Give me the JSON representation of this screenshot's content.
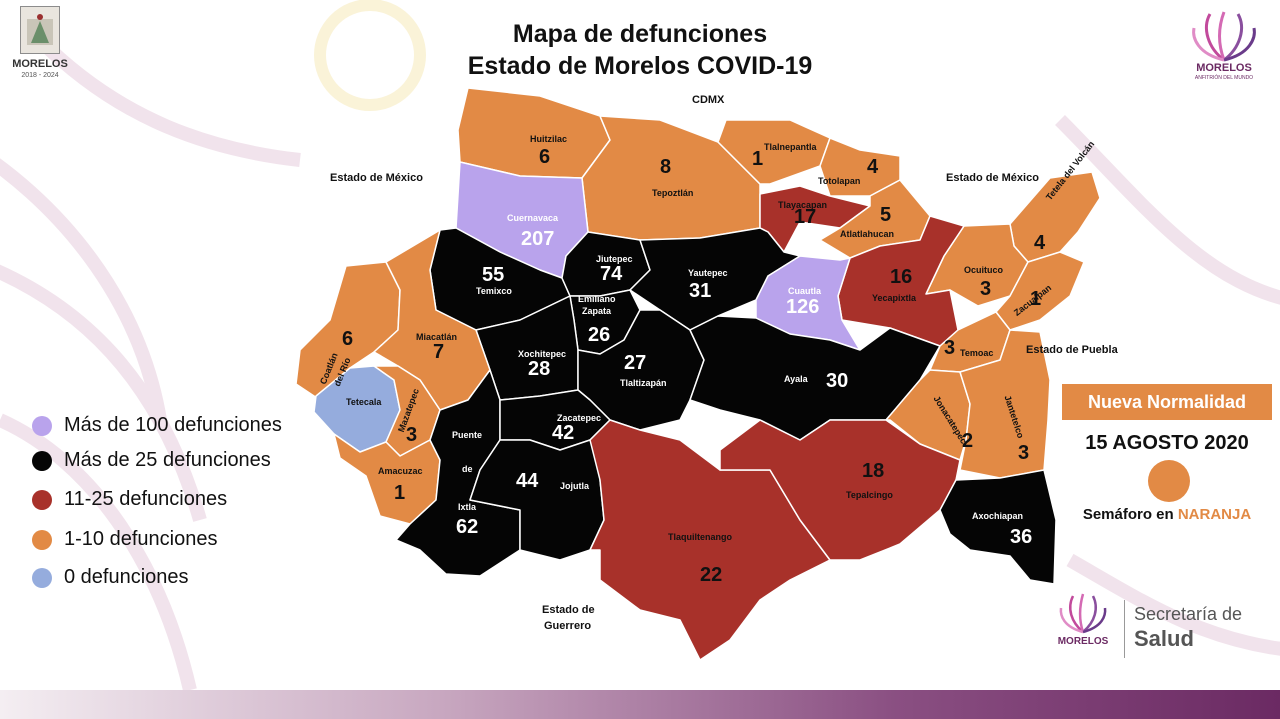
{
  "title": {
    "line1": "Mapa de defunciones",
    "line2": "Estado de Morelos COVID-19"
  },
  "logo_left": {
    "text": "MORELOS",
    "years": "2018 - 2024"
  },
  "logo_right": {
    "text": "MORELOS",
    "sub": "ANFITRIÓN DEL MUNDO"
  },
  "logo_bottom": {
    "text": "MORELOS",
    "secretaria": "Secretaría de",
    "salud": "Salud"
  },
  "colors": {
    "over100": "#B9A3EC",
    "over25": "#050505",
    "r11_25": "#A8312A",
    "r1_10": "#E28A45",
    "zero": "#95ACDD"
  },
  "legend": [
    {
      "label": "Más de 100 defunciones",
      "color": "#B9A3EC"
    },
    {
      "label": "Más de 25 defunciones",
      "color": "#050505"
    },
    {
      "label": "11-25 defunciones",
      "color": "#A8312A"
    },
    {
      "label": "1-10 defunciones",
      "color": "#E28A45"
    },
    {
      "label": "0 defunciones",
      "color": "#95ACDD"
    }
  ],
  "neighbors": {
    "cdmx": "CDMX",
    "edomex_w": "Estado de México",
    "edomex_e": "Estado de México",
    "puebla": "Estado de Puebla",
    "guerrero_1": "Estado de",
    "guerrero_2": "Guerrero"
  },
  "municipalities": {
    "huitzilac": {
      "name": "Huitzilac",
      "deaths": "6"
    },
    "tepoztlan": {
      "name": "Tepoztlán",
      "deaths": "8"
    },
    "tlalnepantla": {
      "name": "Tlalnepantla",
      "deaths": "1"
    },
    "totolapan": {
      "name": "Totolapan",
      "deaths": "4"
    },
    "tlayacapan": {
      "name": "Tlayacapan",
      "deaths": "17"
    },
    "atlatlahucan": {
      "name": "Atlatlahucan",
      "deaths": "5"
    },
    "tetela": {
      "name": "Tetela del Volcán",
      "deaths": "4"
    },
    "ocuituco": {
      "name": "Ocuituco",
      "deaths": "3"
    },
    "zacualpan": {
      "name": "Zacualpan",
      "deaths": "1"
    },
    "yecapixtla": {
      "name": "Yecapixtla",
      "deaths": "16"
    },
    "cuernavaca": {
      "name": "Cuernavaca",
      "deaths": "207"
    },
    "jiutepec": {
      "name": "Jiutepec",
      "deaths": "74"
    },
    "yautepec": {
      "name": "Yautepec",
      "deaths": "31"
    },
    "cuautla": {
      "name": "Cuautla",
      "deaths": "126"
    },
    "temixco": {
      "name": "Temixco",
      "deaths": "55"
    },
    "emiliano_zapata": {
      "name_1": "Emiliano",
      "name_2": "Zapata",
      "deaths": "26"
    },
    "xochitepec": {
      "name": "Xochitepec",
      "deaths": "28"
    },
    "tlaltizapan": {
      "name": "Tlaltizapán",
      "deaths": "27"
    },
    "ayala": {
      "name": "Ayala",
      "deaths": "30"
    },
    "temoac": {
      "name": "Temoac",
      "deaths": "3"
    },
    "jonacatepec": {
      "name": "Jonacatepec",
      "deaths": "2"
    },
    "jantetelco": {
      "name": "Jantetelco",
      "deaths": "3"
    },
    "coatlan": {
      "name_1": "Coatlán",
      "name_2": "del Río",
      "deaths": "6"
    },
    "miacatlan": {
      "name": "Miacatlán",
      "deaths": "7"
    },
    "tetecala": {
      "name": "Tetecala"
    },
    "mazatepec": {
      "name": "Mazatepec",
      "deaths": "3"
    },
    "amacuzac": {
      "name": "Amacuzac",
      "deaths": "1"
    },
    "zacatepec": {
      "name": "Zacatepec",
      "deaths": "42"
    },
    "puente_ixtla": {
      "name_1": "Puente",
      "name_2": "de",
      "name_3": "Ixtla",
      "deaths": "62"
    },
    "jojutla": {
      "name": "Jojutla",
      "deaths": "44"
    },
    "tlaquiltenango": {
      "name": "Tlaquiltenango",
      "deaths": "22"
    },
    "tepalcingo": {
      "name": "Tepalcingo",
      "deaths": "18"
    },
    "axochiapan": {
      "name": "Axochiapan",
      "deaths": "36"
    }
  },
  "status": {
    "badge": "Nueva Normalidad",
    "date": "15 AGOSTO 2020",
    "semaforo_prefix": "Semáforo en",
    "semaforo_value": "NARANJA",
    "semaforo_color": "#E28A45"
  }
}
